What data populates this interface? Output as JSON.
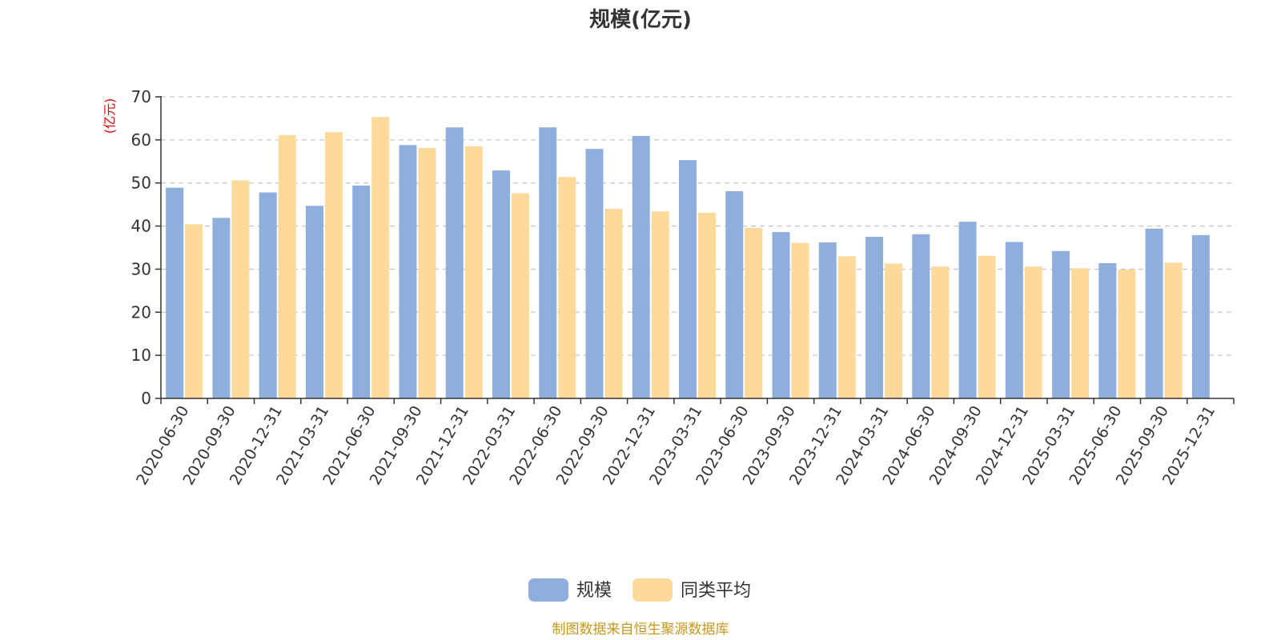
{
  "chart_data": {
    "type": "bar",
    "title": "规模(亿元)",
    "ylabel": "(亿元)",
    "ylim": [
      0,
      70
    ],
    "yticks": [
      0,
      10,
      20,
      30,
      40,
      50,
      60,
      70
    ],
    "grid": true,
    "legend_position": "bottom",
    "categories": [
      "2020-06-30",
      "2020-09-30",
      "2020-12-31",
      "2021-03-31",
      "2021-06-30",
      "2021-09-30",
      "2021-12-31",
      "2022-03-31",
      "2022-06-30",
      "2022-09-30",
      "2022-12-31",
      "2023-03-31",
      "2023-06-30",
      "2023-09-30",
      "2023-12-31",
      "2024-03-31",
      "2024-06-30",
      "2024-09-30",
      "2024-12-31",
      "2025-03-31",
      "2025-06-30",
      "2025-09-30",
      "2025-12-31"
    ],
    "series": [
      {
        "name": "规模",
        "color": "#8eaedb",
        "values": [
          48.9,
          41.9,
          47.8,
          44.7,
          49.4,
          58.8,
          62.9,
          52.9,
          62.9,
          57.9,
          60.9,
          55.3,
          48.1,
          38.6,
          36.2,
          37.5,
          38.1,
          41.0,
          36.3,
          34.2,
          31.4,
          39.4,
          37.9
        ]
      },
      {
        "name": "同类平均",
        "color": "#fdd99b",
        "values": [
          40.4,
          50.6,
          61.1,
          61.8,
          65.3,
          58.1,
          58.5,
          47.6,
          51.4,
          44.0,
          43.4,
          43.1,
          39.6,
          36.1,
          33.0,
          31.3,
          30.6,
          33.1,
          30.6,
          30.2,
          29.9,
          31.5,
          null
        ]
      }
    ]
  },
  "footer": {
    "source": "制图数据来自恒生聚源数据库"
  }
}
